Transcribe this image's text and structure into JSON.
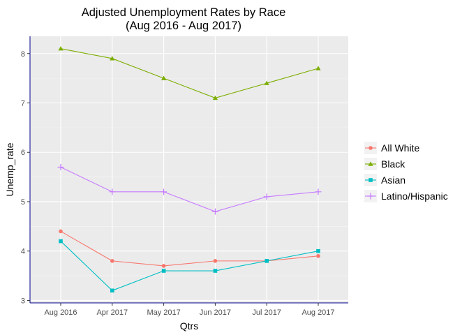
{
  "chart_data": {
    "type": "line",
    "title": [
      "Adjusted Unemployment Rates by Race",
      "(Aug 2016 - Aug 2017)"
    ],
    "xlabel": "Qtrs",
    "ylabel": "Unemp_rate",
    "categories": [
      "Aug 2016",
      "Apr 2017",
      "May 2017",
      "Jun 2017",
      "Jul 2017",
      "Aug 2017"
    ],
    "ylim": [
      2.95,
      8.35
    ],
    "yticks": [
      3,
      4,
      5,
      6,
      7,
      8
    ],
    "grid": true,
    "legend_position": "right",
    "panel_background": "#ebebeb",
    "series": [
      {
        "name": "All White",
        "color": "#f8766d",
        "marker": "circle",
        "values": [
          4.4,
          3.8,
          3.7,
          3.8,
          3.8,
          3.9
        ]
      },
      {
        "name": "Black",
        "color": "#7cae00",
        "marker": "triangle",
        "values": [
          8.1,
          7.9,
          7.5,
          7.1,
          7.4,
          7.7
        ]
      },
      {
        "name": "Asian",
        "color": "#00bfc4",
        "marker": "square",
        "values": [
          4.2,
          3.2,
          3.6,
          3.6,
          3.8,
          4.0
        ]
      },
      {
        "name": "Latino/Hispanic",
        "color": "#c77cff",
        "marker": "plus",
        "values": [
          5.7,
          5.2,
          5.2,
          4.8,
          5.1,
          5.2
        ]
      }
    ]
  }
}
